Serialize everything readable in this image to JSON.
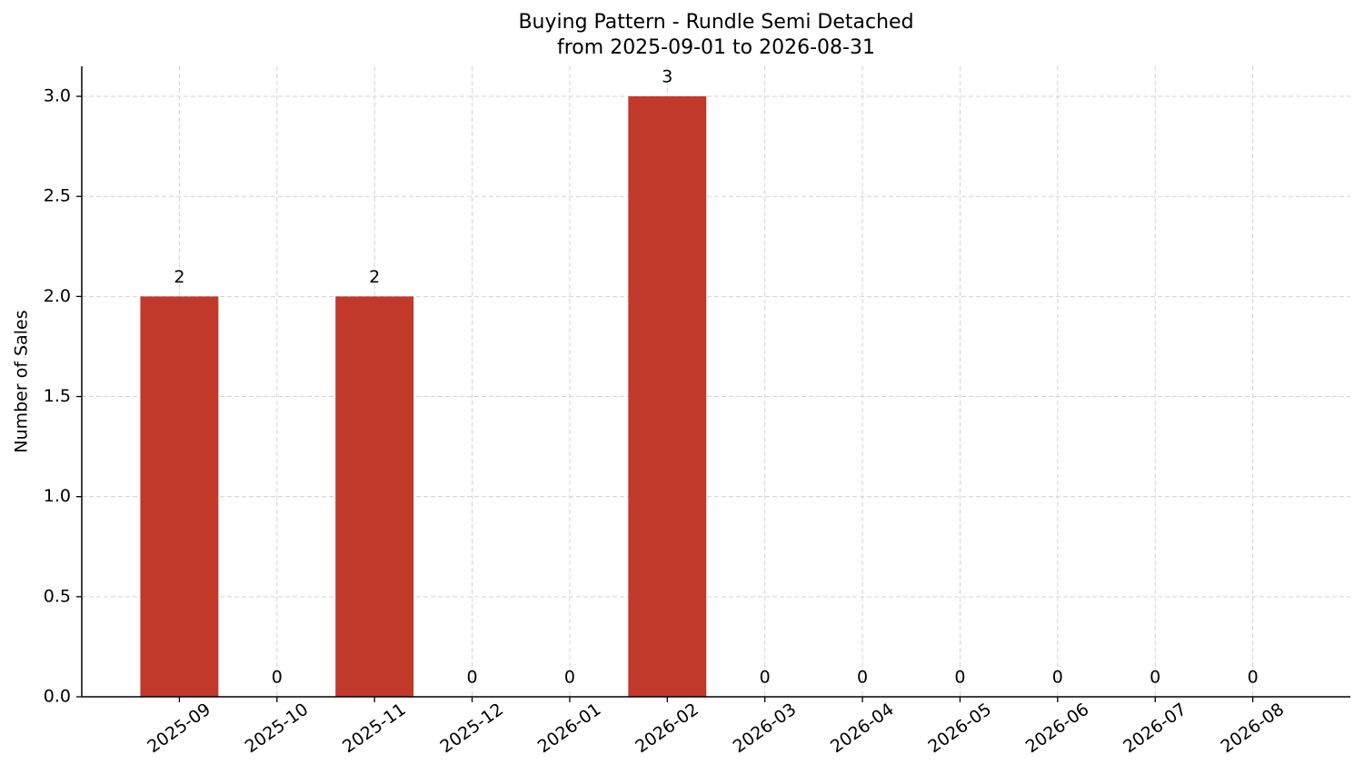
{
  "chart_data": {
    "type": "bar",
    "title": "Buying Pattern - Rundle Semi Detached",
    "subtitle": "from 2025-09-01 to 2026-08-31",
    "ylabel": "Number of Sales",
    "categories": [
      "2025-09",
      "2025-10",
      "2025-11",
      "2025-12",
      "2026-01",
      "2026-02",
      "2026-03",
      "2026-04",
      "2026-05",
      "2026-06",
      "2026-07",
      "2026-08"
    ],
    "values": [
      2,
      0,
      2,
      0,
      0,
      3,
      0,
      0,
      0,
      0,
      0,
      0
    ],
    "color": "#c0392b",
    "ylim": [
      0,
      3.15
    ],
    "yticks": [
      {
        "value": 0,
        "label": "0.0"
      },
      0.5,
      {
        "value": 1,
        "label": "1.0"
      },
      1.5,
      {
        "value": 2,
        "label": "2.0"
      },
      2.5,
      {
        "value": 3,
        "label": "3.0"
      }
    ],
    "grid": true
  }
}
